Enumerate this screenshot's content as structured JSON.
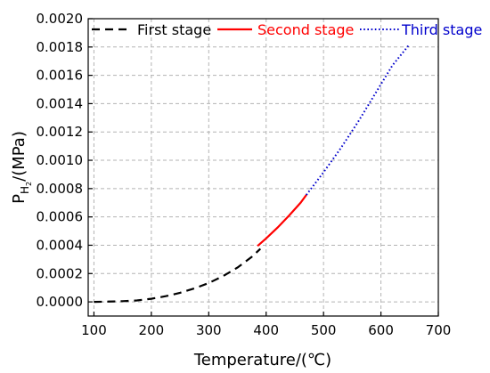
{
  "chart_data": {
    "type": "line",
    "title": "",
    "xlabel": "Temperature/(℃)",
    "ylabel": {
      "main": "P",
      "sub": "H",
      "subsub": "2",
      "suffix": "/(MPa)"
    },
    "xlim": [
      90,
      700
    ],
    "ylim": [
      -0.0001,
      0.002
    ],
    "xticks": [
      100,
      200,
      300,
      400,
      500,
      600,
      700
    ],
    "yticks": [
      0.0,
      0.0002,
      0.0004,
      0.0006,
      0.0008,
      0.001,
      0.0012,
      0.0014,
      0.0016,
      0.0018,
      0.002
    ],
    "yticks_labels": [
      "0.0000",
      "0.0002",
      "0.0004",
      "0.0006",
      "0.0008",
      "0.0010",
      "0.0012",
      "0.0014",
      "0.0016",
      "0.0018",
      "0.0020"
    ],
    "grid": true,
    "legend_placement": "top",
    "series": [
      {
        "name": "First stage",
        "color": "#000000",
        "style": "dashed",
        "x": [
          100,
          125,
          150,
          175,
          200,
          225,
          250,
          275,
          300,
          325,
          350,
          375,
          390
        ],
        "y": [
          0.0,
          2e-06,
          5e-06,
          1e-05,
          2.2e-05,
          4e-05,
          6.4e-05,
          9.5e-05,
          0.000133,
          0.000182,
          0.000242,
          0.000318,
          0.000375
        ]
      },
      {
        "name": "Second stage",
        "color": "#ff0000",
        "style": "solid",
        "x": [
          385,
          400,
          420,
          440,
          460,
          470
        ],
        "y": [
          0.000395,
          0.000448,
          0.000525,
          0.00061,
          0.0007,
          0.000755
        ]
      },
      {
        "name": "Third stage",
        "color": "#0000cc",
        "style": "dotted",
        "x": [
          470,
          500,
          530,
          560,
          590,
          620,
          650
        ],
        "y": [
          0.000755,
          0.000915,
          0.001085,
          0.00127,
          0.00147,
          0.00167,
          0.00182
        ]
      }
    ]
  }
}
